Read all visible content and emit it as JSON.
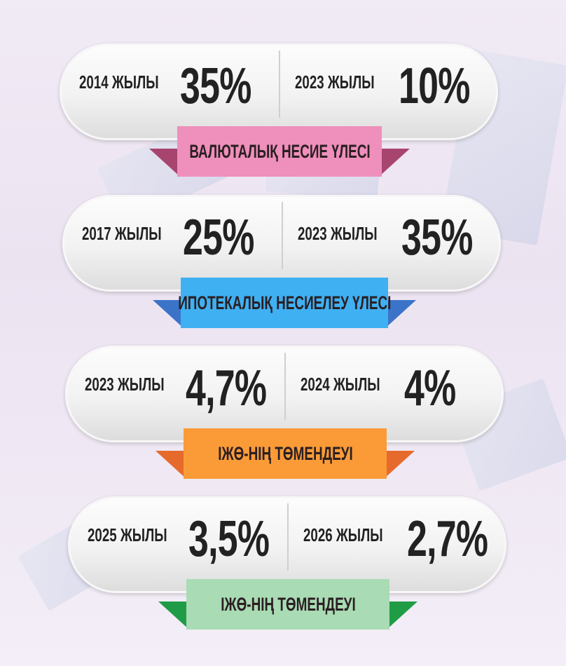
{
  "blocks": [
    {
      "left_year": "2014 ЖЫЛЫ",
      "left_value": "35%",
      "right_year": "2023 ЖЫЛЫ",
      "right_value": "10%",
      "label": "ВАЛЮТАЛЫҚ НЕСИЕ ҮЛЕСІ",
      "color": "#ef8fbb",
      "tail_color": "#a8456f"
    },
    {
      "left_year": "2017 ЖЫЛЫ",
      "left_value": "25%",
      "right_year": "2023 ЖЫЛЫ",
      "right_value": "35%",
      "label": "ИПОТЕКАЛЫҚ НЕСИЕЛЕУ ҮЛЕСІ",
      "color": "#3fb0f2",
      "tail_color": "#3b73c9"
    },
    {
      "left_year": "2023 ЖЫЛЫ",
      "left_value": "4,7%",
      "right_year": "2024 ЖЫЛЫ",
      "right_value": "4%",
      "label": "ІЖӨ-НІҢ ТӨМЕНДЕУІ",
      "color": "#fb9b38",
      "tail_color": "#e66a2c"
    },
    {
      "left_year": "2025 ЖЫЛЫ",
      "left_value": "3,5%",
      "right_year": "2026 ЖЫЛЫ",
      "right_value": "2,7%",
      "label": "ІЖӨ-НІҢ ТӨМЕНДЕУІ",
      "color": "#a9dbb4",
      "tail_color": "#1f9c45"
    }
  ]
}
